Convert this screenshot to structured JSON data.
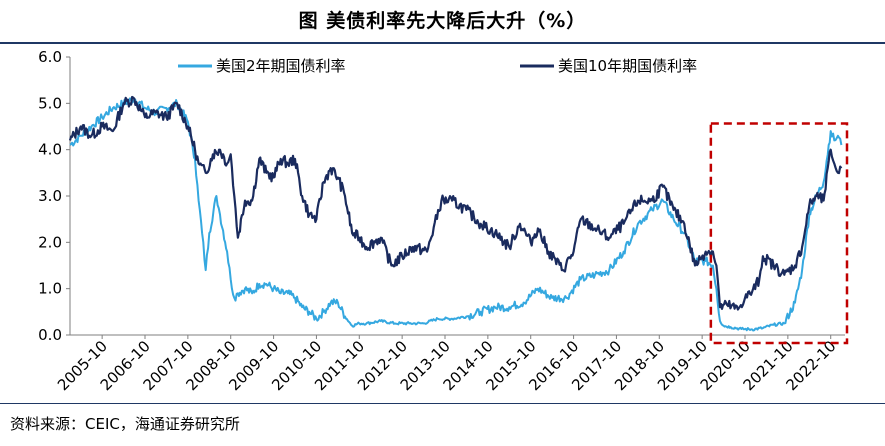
{
  "title": "图  美债利率先大降后大升（%）",
  "source": "资料来源：CEIC，海通证券研究所",
  "colors": {
    "series_2y": "#35a8e0",
    "series_10y": "#1a2b5e",
    "highlight": "#c00000",
    "axis": "#7f7f7f",
    "rule": "#1f3864"
  },
  "chart_data": {
    "type": "line",
    "xlabel": "",
    "ylabel": "",
    "ylim": [
      0,
      6
    ],
    "yticks": [
      "0.0",
      "1.0",
      "2.0",
      "3.0",
      "4.0",
      "5.0",
      "6.0"
    ],
    "xticks": [
      "2005-10",
      "2006-10",
      "2007-10",
      "2008-10",
      "2009-10",
      "2010-10",
      "2011-10",
      "2012-10",
      "2013-10",
      "2014-10",
      "2015-10",
      "2016-10",
      "2017-10",
      "2018-10",
      "2019-10",
      "2020-10",
      "2021-10",
      "2022-10"
    ],
    "xlim": [
      "2005-01",
      "2023-02"
    ],
    "grid": false,
    "legend_position": "top",
    "highlight_box": {
      "x_from": "2020-01",
      "x_to": "2023-02",
      "y_from": 0,
      "y_to": 4.5,
      "style": "dashed"
    },
    "series": [
      {
        "name": "美国2年期国债利率",
        "x": [
          "2005-01",
          "2005-04",
          "2005-07",
          "2005-10",
          "2006-01",
          "2006-04",
          "2006-07",
          "2006-10",
          "2007-01",
          "2007-04",
          "2007-07",
          "2007-10",
          "2007-12",
          "2008-01",
          "2008-02",
          "2008-03",
          "2008-04",
          "2008-06",
          "2008-07",
          "2008-09",
          "2008-10",
          "2008-11",
          "2008-12",
          "2009-02",
          "2009-04",
          "2009-06",
          "2009-08",
          "2009-10",
          "2009-12",
          "2010-02",
          "2010-04",
          "2010-06",
          "2010-08",
          "2010-10",
          "2010-12",
          "2011-02",
          "2011-04",
          "2011-06",
          "2011-08",
          "2011-10",
          "2011-12",
          "2012-04",
          "2012-08",
          "2012-12",
          "2013-04",
          "2013-08",
          "2013-12",
          "2014-04",
          "2014-08",
          "2014-12",
          "2015-04",
          "2015-08",
          "2015-12",
          "2016-04",
          "2016-08",
          "2016-12",
          "2017-04",
          "2017-08",
          "2017-12",
          "2018-04",
          "2018-08",
          "2018-11",
          "2019-02",
          "2019-05",
          "2019-08",
          "2019-11",
          "2020-01",
          "2020-02",
          "2020-03",
          "2020-04",
          "2020-06",
          "2020-09",
          "2020-12",
          "2021-03",
          "2021-06",
          "2021-09",
          "2021-12",
          "2022-02",
          "2022-04",
          "2022-06",
          "2022-08",
          "2022-10",
          "2022-11",
          "2022-12",
          "2023-01"
        ],
        "values": [
          4.1,
          4.3,
          4.5,
          4.7,
          4.9,
          5.0,
          5.1,
          4.9,
          4.8,
          4.9,
          5.0,
          4.6,
          3.8,
          2.9,
          2.2,
          1.4,
          2.2,
          3.0,
          2.6,
          1.8,
          1.2,
          0.8,
          0.9,
          1.0,
          0.9,
          1.1,
          1.1,
          1.0,
          0.9,
          0.9,
          0.8,
          0.6,
          0.5,
          0.35,
          0.5,
          0.7,
          0.7,
          0.4,
          0.2,
          0.25,
          0.25,
          0.3,
          0.25,
          0.25,
          0.25,
          0.35,
          0.35,
          0.4,
          0.5,
          0.6,
          0.6,
          0.7,
          1.0,
          0.8,
          0.8,
          1.2,
          1.3,
          1.4,
          1.8,
          2.4,
          2.7,
          2.9,
          2.5,
          2.2,
          1.6,
          1.6,
          1.5,
          1.0,
          0.3,
          0.2,
          0.17,
          0.13,
          0.12,
          0.15,
          0.22,
          0.25,
          0.7,
          1.4,
          2.6,
          3.0,
          3.3,
          4.4,
          4.2,
          4.3,
          4.1
        ]
      },
      {
        "name": "美国10年期国债利率",
        "x": [
          "2005-01",
          "2005-04",
          "2005-07",
          "2005-10",
          "2006-01",
          "2006-04",
          "2006-07",
          "2006-10",
          "2007-01",
          "2007-04",
          "2007-07",
          "2007-10",
          "2007-12",
          "2008-01",
          "2008-03",
          "2008-05",
          "2008-07",
          "2008-09",
          "2008-10",
          "2008-11",
          "2008-12",
          "2009-02",
          "2009-04",
          "2009-06",
          "2009-08",
          "2009-10",
          "2009-12",
          "2010-02",
          "2010-04",
          "2010-06",
          "2010-08",
          "2010-10",
          "2010-12",
          "2011-02",
          "2011-04",
          "2011-06",
          "2011-08",
          "2011-10",
          "2011-12",
          "2012-04",
          "2012-07",
          "2012-10",
          "2013-01",
          "2013-05",
          "2013-09",
          "2013-12",
          "2014-04",
          "2014-08",
          "2014-12",
          "2015-04",
          "2015-07",
          "2015-10",
          "2015-12",
          "2016-03",
          "2016-07",
          "2016-10",
          "2016-12",
          "2017-04",
          "2017-08",
          "2017-12",
          "2018-04",
          "2018-08",
          "2018-11",
          "2019-02",
          "2019-05",
          "2019-08",
          "2019-11",
          "2020-01",
          "2020-02",
          "2020-03",
          "2020-05",
          "2020-08",
          "2020-10",
          "2020-12",
          "2021-02",
          "2021-03",
          "2021-06",
          "2021-09",
          "2021-12",
          "2022-02",
          "2022-04",
          "2022-06",
          "2022-08",
          "2022-10",
          "2022-11",
          "2022-12",
          "2023-01"
        ],
        "values": [
          4.2,
          4.5,
          4.3,
          4.5,
          4.4,
          5.0,
          5.1,
          4.7,
          4.8,
          4.7,
          5.0,
          4.5,
          4.0,
          3.7,
          3.5,
          3.9,
          4.0,
          3.7,
          3.9,
          3.0,
          2.1,
          2.9,
          2.9,
          3.8,
          3.5,
          3.4,
          3.8,
          3.7,
          3.8,
          3.0,
          2.6,
          2.5,
          3.3,
          3.6,
          3.4,
          3.0,
          2.2,
          2.1,
          1.9,
          2.1,
          1.5,
          1.7,
          1.9,
          1.8,
          2.9,
          2.9,
          2.7,
          2.4,
          2.2,
          1.9,
          2.4,
          2.0,
          2.3,
          1.8,
          1.4,
          1.8,
          2.5,
          2.3,
          2.1,
          2.4,
          2.9,
          2.9,
          3.2,
          2.7,
          2.4,
          1.5,
          1.8,
          1.8,
          1.5,
          0.6,
          0.65,
          0.55,
          0.8,
          0.93,
          1.2,
          1.7,
          1.5,
          1.3,
          1.5,
          1.9,
          2.8,
          3.0,
          2.9,
          4.0,
          3.7,
          3.5,
          3.6
        ]
      }
    ]
  }
}
